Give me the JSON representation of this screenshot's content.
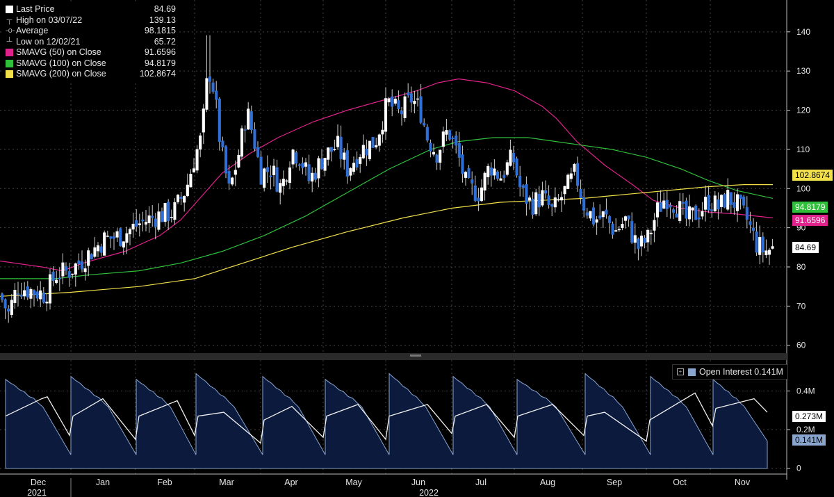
{
  "legend": {
    "items": [
      {
        "label": "Last Price",
        "value": "84.69",
        "glyph": "square",
        "color": "#ffffff"
      },
      {
        "label": "High on 03/07/22",
        "value": "139.13",
        "glyph": "high"
      },
      {
        "label": "Average",
        "value": "98.1815",
        "glyph": "avg"
      },
      {
        "label": "Low on 12/02/21",
        "value": "65.72",
        "glyph": "low"
      },
      {
        "label": "SMAVG (50)  on Close",
        "value": "91.6596",
        "glyph": "square",
        "color": "#e0228c"
      },
      {
        "label": "SMAVG (100)  on Close",
        "value": "94.8179",
        "glyph": "square",
        "color": "#2fbf3b"
      },
      {
        "label": "SMAVG (200)  on Close",
        "value": "102.8674",
        "glyph": "square",
        "color": "#f2e04a"
      }
    ]
  },
  "tags": {
    "sma200": "102.8674",
    "sma100": "94.8179",
    "sma50": "91.6596",
    "last": "84.69",
    "oi_line": "0.273M",
    "oi": "0.141M"
  },
  "oi_legend": {
    "label": "Open Interest 0.141M"
  },
  "chart_data": {
    "type": "candlestick",
    "title": "",
    "price_axis": {
      "ticks": [
        "60",
        "70",
        "80",
        "90",
        "100",
        "110",
        "120",
        "130",
        "140"
      ],
      "ylim": [
        58,
        146
      ]
    },
    "oi_axis": {
      "ticks": [
        "0",
        "0.2M",
        "0.4M"
      ],
      "ylim": [
        -0.03,
        0.56
      ]
    },
    "x_labels": [
      "Dec",
      "Jan",
      "Feb",
      "Mar",
      "Apr",
      "May",
      "Jun",
      "Jul",
      "Aug",
      "Sep",
      "Oct",
      "Nov"
    ],
    "year_labels": [
      "2021",
      "2022"
    ],
    "close_anchors": [
      {
        "x": 0,
        "y": 73
      },
      {
        "x": 12,
        "y": 68
      },
      {
        "x": 25,
        "y": 75
      },
      {
        "x": 45,
        "y": 74
      },
      {
        "x": 65,
        "y": 73
      },
      {
        "x": 80,
        "y": 78
      },
      {
        "x": 100,
        "y": 79
      },
      {
        "x": 120,
        "y": 82
      },
      {
        "x": 150,
        "y": 87
      },
      {
        "x": 175,
        "y": 88
      },
      {
        "x": 200,
        "y": 91
      },
      {
        "x": 225,
        "y": 93
      },
      {
        "x": 250,
        "y": 94
      },
      {
        "x": 268,
        "y": 100
      },
      {
        "x": 280,
        "y": 108
      },
      {
        "x": 290,
        "y": 113
      },
      {
        "x": 300,
        "y": 131
      },
      {
        "x": 308,
        "y": 125
      },
      {
        "x": 318,
        "y": 110
      },
      {
        "x": 330,
        "y": 99
      },
      {
        "x": 345,
        "y": 110
      },
      {
        "x": 355,
        "y": 120
      },
      {
        "x": 365,
        "y": 113
      },
      {
        "x": 375,
        "y": 104
      },
      {
        "x": 390,
        "y": 105
      },
      {
        "x": 405,
        "y": 100
      },
      {
        "x": 420,
        "y": 110
      },
      {
        "x": 432,
        "y": 108
      },
      {
        "x": 445,
        "y": 102
      },
      {
        "x": 465,
        "y": 108
      },
      {
        "x": 485,
        "y": 111
      },
      {
        "x": 500,
        "y": 105
      },
      {
        "x": 520,
        "y": 110
      },
      {
        "x": 540,
        "y": 112
      },
      {
        "x": 558,
        "y": 122
      },
      {
        "x": 575,
        "y": 119
      },
      {
        "x": 592,
        "y": 123
      },
      {
        "x": 605,
        "y": 120
      },
      {
        "x": 615,
        "y": 113
      },
      {
        "x": 628,
        "y": 109
      },
      {
        "x": 645,
        "y": 115
      },
      {
        "x": 660,
        "y": 108
      },
      {
        "x": 672,
        "y": 100
      },
      {
        "x": 690,
        "y": 99
      },
      {
        "x": 705,
        "y": 106
      },
      {
        "x": 720,
        "y": 103
      },
      {
        "x": 738,
        "y": 108
      },
      {
        "x": 750,
        "y": 99
      },
      {
        "x": 765,
        "y": 96
      },
      {
        "x": 780,
        "y": 98
      },
      {
        "x": 795,
        "y": 94
      },
      {
        "x": 812,
        "y": 99
      },
      {
        "x": 828,
        "y": 104
      },
      {
        "x": 840,
        "y": 96
      },
      {
        "x": 855,
        "y": 92
      },
      {
        "x": 870,
        "y": 93
      },
      {
        "x": 885,
        "y": 89
      },
      {
        "x": 900,
        "y": 92
      },
      {
        "x": 918,
        "y": 85
      },
      {
        "x": 932,
        "y": 87
      },
      {
        "x": 945,
        "y": 94
      },
      {
        "x": 958,
        "y": 98
      },
      {
        "x": 972,
        "y": 96
      },
      {
        "x": 988,
        "y": 92
      },
      {
        "x": 1005,
        "y": 94
      },
      {
        "x": 1020,
        "y": 97
      },
      {
        "x": 1035,
        "y": 95
      },
      {
        "x": 1045,
        "y": 98
      },
      {
        "x": 1060,
        "y": 96
      },
      {
        "x": 1075,
        "y": 92
      },
      {
        "x": 1088,
        "y": 86
      },
      {
        "x": 1100,
        "y": 84
      },
      {
        "x": 1112,
        "y": 84.69
      }
    ],
    "series": [
      {
        "name": "Last Price",
        "color": "#ffffff"
      },
      {
        "name": "SMAVG (50)",
        "color": "#e0228c",
        "points": [
          [
            0,
            81.5
          ],
          [
            60,
            80
          ],
          [
            90,
            79
          ],
          [
            120,
            81
          ],
          [
            180,
            84
          ],
          [
            230,
            88
          ],
          [
            260,
            92
          ],
          [
            290,
            98
          ],
          [
            320,
            104
          ],
          [
            360,
            109
          ],
          [
            400,
            113
          ],
          [
            450,
            117
          ],
          [
            500,
            120
          ],
          [
            550,
            122.5
          ],
          [
            600,
            125
          ],
          [
            630,
            127
          ],
          [
            660,
            128
          ],
          [
            700,
            127
          ],
          [
            740,
            125
          ],
          [
            780,
            121
          ],
          [
            800,
            118
          ],
          [
            830,
            112
          ],
          [
            870,
            106
          ],
          [
            910,
            101
          ],
          [
            940,
            97
          ],
          [
            980,
            95
          ],
          [
            1020,
            94
          ],
          [
            1060,
            93.5
          ],
          [
            1112,
            92.5
          ]
        ]
      },
      {
        "name": "SMAVG (100)",
        "color": "#2fbf3b",
        "points": [
          [
            0,
            77
          ],
          [
            80,
            77
          ],
          [
            130,
            78
          ],
          [
            200,
            79
          ],
          [
            260,
            81
          ],
          [
            320,
            84
          ],
          [
            380,
            88
          ],
          [
            440,
            93
          ],
          [
            500,
            99
          ],
          [
            560,
            105
          ],
          [
            620,
            110
          ],
          [
            660,
            112
          ],
          [
            710,
            113
          ],
          [
            760,
            113
          ],
          [
            800,
            112
          ],
          [
            840,
            111
          ],
          [
            880,
            110
          ],
          [
            930,
            108
          ],
          [
            980,
            105
          ],
          [
            1020,
            102
          ],
          [
            1060,
            99.5
          ],
          [
            1112,
            97.5
          ]
        ]
      },
      {
        "name": "SMAVG (200)",
        "color": "#f2e04a",
        "points": [
          [
            0,
            72.5
          ],
          [
            100,
            73.5
          ],
          [
            200,
            75
          ],
          [
            280,
            77
          ],
          [
            350,
            81
          ],
          [
            420,
            85
          ],
          [
            500,
            89
          ],
          [
            580,
            92.5
          ],
          [
            650,
            95
          ],
          [
            720,
            96.5
          ],
          [
            780,
            97
          ],
          [
            840,
            97.5
          ],
          [
            900,
            98.5
          ],
          [
            960,
            99.5
          ],
          [
            1020,
            100.5
          ],
          [
            1070,
            101
          ],
          [
            1112,
            101
          ]
        ]
      },
      {
        "name": "Open Interest",
        "color": "#8aa6cf",
        "cycle_starts": [
          8,
          102,
          196,
          282,
          378,
          468,
          560,
          652,
          744,
          842,
          936,
          1026
        ],
        "end": 1104
      },
      {
        "name": "OI line",
        "color": "#f0f0f0",
        "points": [
          [
            8,
            0.27
          ],
          [
            60,
            0.36
          ],
          [
            68,
            0.37
          ],
          [
            100,
            0.17
          ],
          [
            105,
            0.27
          ],
          [
            148,
            0.36
          ],
          [
            195,
            0.15
          ],
          [
            200,
            0.27
          ],
          [
            255,
            0.35
          ],
          [
            280,
            0.17
          ],
          [
            285,
            0.27
          ],
          [
            322,
            0.29
          ],
          [
            375,
            0.13
          ],
          [
            380,
            0.25
          ],
          [
            420,
            0.32
          ],
          [
            465,
            0.16
          ],
          [
            470,
            0.27
          ],
          [
            515,
            0.33
          ],
          [
            555,
            0.15
          ],
          [
            560,
            0.27
          ],
          [
            615,
            0.33
          ],
          [
            650,
            0.18
          ],
          [
            655,
            0.27
          ],
          [
            700,
            0.33
          ],
          [
            740,
            0.16
          ],
          [
            745,
            0.27
          ],
          [
            795,
            0.33
          ],
          [
            840,
            0.17
          ],
          [
            845,
            0.27
          ],
          [
            870,
            0.29
          ],
          [
            930,
            0.14
          ],
          [
            935,
            0.25
          ],
          [
            1000,
            0.39
          ],
          [
            1025,
            0.22
          ],
          [
            1030,
            0.31
          ],
          [
            1085,
            0.36
          ],
          [
            1104,
            0.29
          ]
        ]
      }
    ]
  }
}
